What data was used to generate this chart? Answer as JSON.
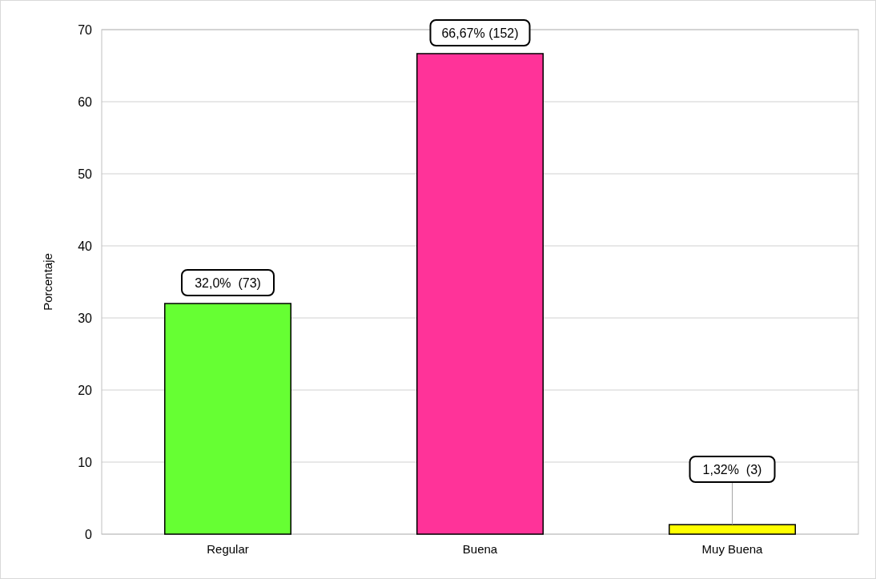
{
  "chart_data": {
    "type": "bar",
    "ylabel": "Porcentaje",
    "categories": [
      "Regular",
      "Buena",
      "Muy Buena"
    ],
    "values": [
      32.0,
      66.67,
      1.32
    ],
    "colors": [
      "#66ff33",
      "#ff3399",
      "#ffff00"
    ],
    "value_labels": [
      "32,0%  (73)",
      "66,67% (152)",
      "1,32%  (3)"
    ],
    "ylim": [
      0,
      70
    ],
    "yticks": [
      0,
      10,
      20,
      30,
      40,
      50,
      60,
      70
    ],
    "grid": "y"
  }
}
